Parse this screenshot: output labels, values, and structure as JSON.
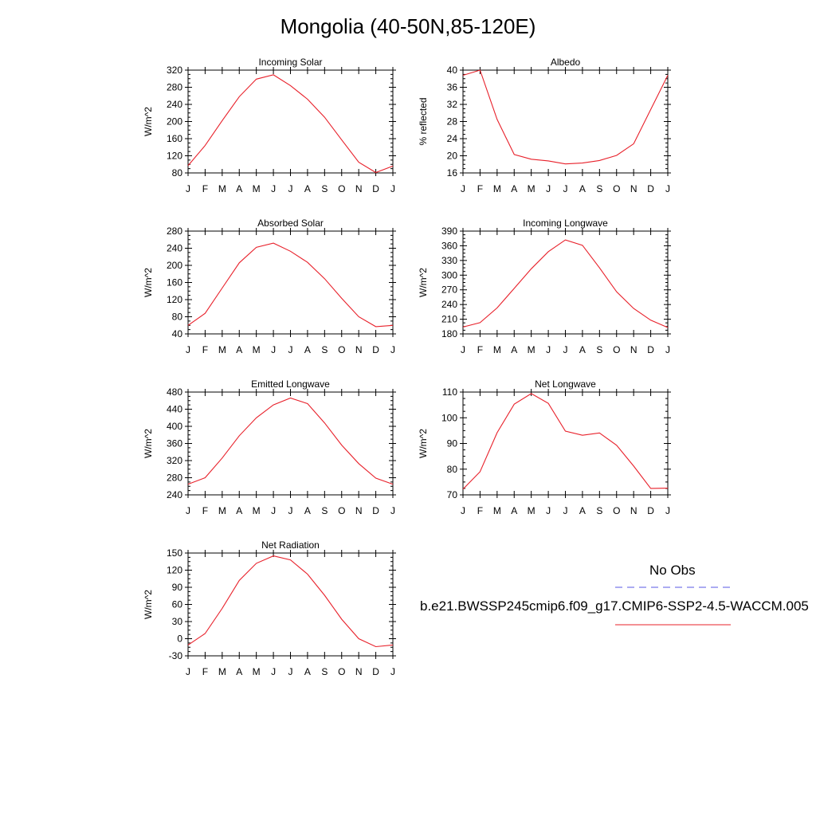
{
  "title": "Mongolia (40-50N,85-120E)",
  "colors": {
    "model_line": "#e8202a",
    "obs_line": "#5a5ae6",
    "axis": "#000000"
  },
  "months": [
    "J",
    "F",
    "M",
    "A",
    "M",
    "J",
    "J",
    "A",
    "S",
    "O",
    "N",
    "D",
    "J"
  ],
  "chart_data": [
    {
      "type": "line",
      "title": "Incoming Solar",
      "ylabel": "W/m^2",
      "ylim": [
        80,
        320
      ],
      "yticks": [
        80,
        120,
        160,
        200,
        240,
        280,
        320
      ],
      "series": [
        {
          "values": [
            97,
            144,
            202,
            258,
            299,
            309,
            284,
            252,
            210,
            157,
            105,
            81,
            96
          ]
        }
      ]
    },
    {
      "type": "line",
      "title": "Albedo",
      "ylabel": "% reflected",
      "ylim": [
        16,
        40
      ],
      "yticks": [
        16,
        20,
        24,
        28,
        32,
        36,
        40
      ],
      "series": [
        {
          "values": [
            38.8,
            40,
            28.5,
            20.3,
            19.2,
            18.8,
            18.1,
            18.3,
            18.9,
            20.1,
            22.8,
            30.8,
            38.8
          ]
        }
      ]
    },
    {
      "type": "line",
      "title": "Absorbed Solar",
      "ylabel": "W/m^2",
      "ylim": [
        40,
        280
      ],
      "yticks": [
        40,
        80,
        120,
        160,
        200,
        240,
        280
      ],
      "series": [
        {
          "values": [
            60,
            88,
            147,
            206,
            242,
            252,
            233,
            207,
            169,
            123,
            80,
            57,
            60
          ]
        }
      ]
    },
    {
      "type": "line",
      "title": "Incoming Longwave",
      "ylabel": "W/m^2",
      "ylim": [
        180,
        390
      ],
      "yticks": [
        180,
        210,
        240,
        270,
        300,
        330,
        360,
        390
      ],
      "series": [
        {
          "values": [
            194,
            203,
            233,
            273,
            313,
            348,
            372,
            361,
            315,
            266,
            232,
            208,
            193
          ]
        }
      ]
    },
    {
      "type": "line",
      "title": "Emitted Longwave",
      "ylabel": "W/m^2",
      "ylim": [
        240,
        480
      ],
      "yticks": [
        240,
        280,
        320,
        360,
        400,
        440,
        480
      ],
      "series": [
        {
          "values": [
            265,
            280,
            326,
            378,
            420,
            450,
            466,
            453,
            408,
            356,
            313,
            279,
            265
          ]
        }
      ]
    },
    {
      "type": "line",
      "title": "Net Longwave",
      "ylabel": "W/m^2",
      "ylim": [
        70,
        110
      ],
      "yticks": [
        70,
        80,
        90,
        100,
        110
      ],
      "series": [
        {
          "values": [
            72.2,
            79,
            94.2,
            105.3,
            109.4,
            105.6,
            94.8,
            93.2,
            94.1,
            89.3,
            81.2,
            72.5,
            72.6
          ]
        }
      ]
    },
    {
      "type": "line",
      "title": "Net Radiation",
      "ylabel": "W/m^2",
      "ylim": [
        -30,
        150
      ],
      "yticks": [
        -30,
        0,
        30,
        60,
        90,
        120,
        150
      ],
      "series": [
        {
          "values": [
            -11,
            9,
            53,
            102,
            132,
            145,
            138,
            113,
            76,
            34,
            0,
            -14,
            -11
          ]
        }
      ]
    }
  ],
  "legend": {
    "obs_label": "No Obs",
    "model_label": "b.e21.BWSSP245cmip6.f09_g17.CMIP6-SSP2-4.5-WACCM.005"
  }
}
